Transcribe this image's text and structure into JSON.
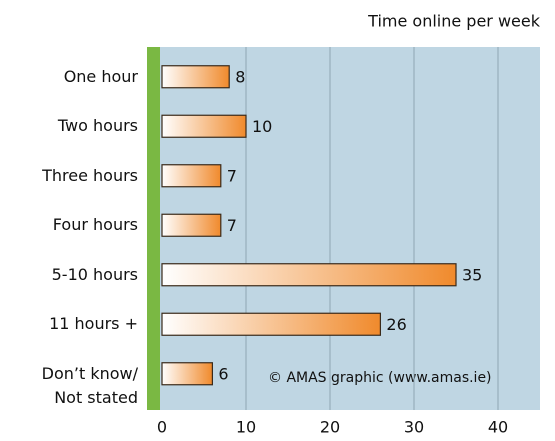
{
  "chart_data": {
    "type": "bar",
    "orientation": "horizontal",
    "title": "Time online per week",
    "categories": [
      "One hour",
      "Two hours",
      "Three hours",
      "Four hours",
      "5-10 hours",
      "11 hours +",
      "Don’t know/\nNot stated"
    ],
    "values": [
      8,
      10,
      7,
      7,
      35,
      26,
      6
    ],
    "color": "#f08a2c",
    "xlim": [
      0,
      45
    ],
    "xticks": [
      0,
      10,
      20,
      30,
      40
    ],
    "grid": true,
    "annotation": "© AMAS graphic (www.amas.ie)"
  }
}
